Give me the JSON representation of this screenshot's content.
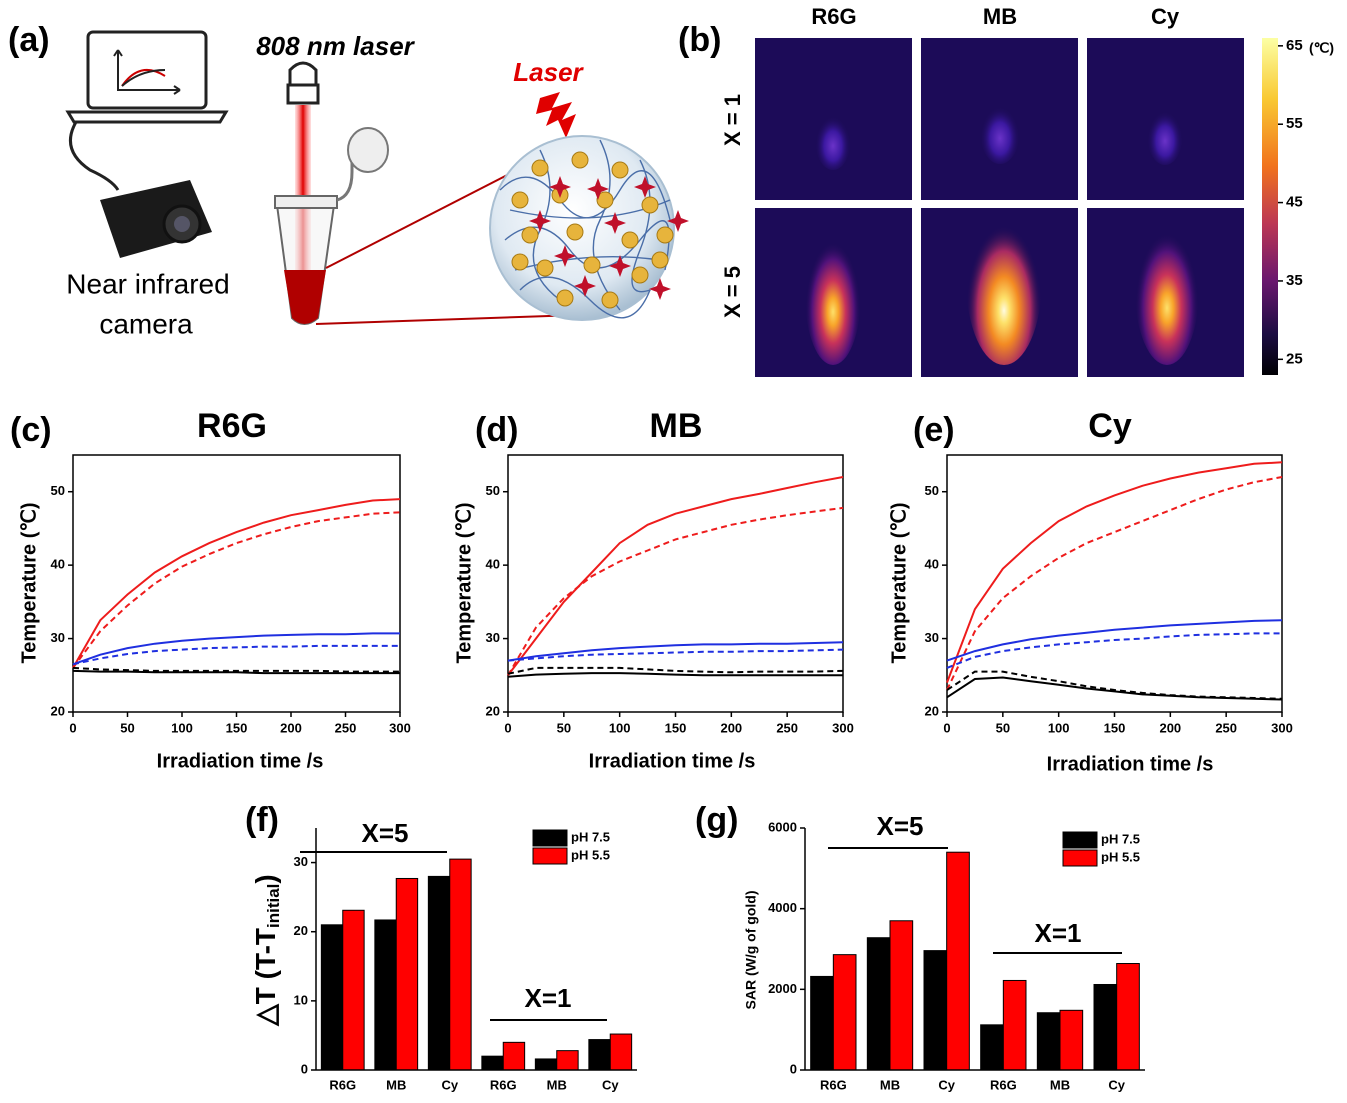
{
  "panel_a": {
    "label": "(a)",
    "laser_wavelength": "808 nm laser",
    "laser": "Laser",
    "camera_line1": "Near infrared",
    "camera_line2": "camera"
  },
  "panel_b": {
    "label": "(b)",
    "columns": [
      "R6G",
      "MB",
      "Cy"
    ],
    "rows": [
      "X = 1",
      "X = 5"
    ],
    "colorbar": {
      "lim": [
        23,
        66
      ],
      "ticks": [
        25,
        35,
        45,
        55,
        65
      ],
      "unit": "(℃)"
    }
  },
  "chart_data": [
    {
      "type": "line",
      "panel": "(c)",
      "title": "R6G",
      "x_label": "Irradiation time /s",
      "y_label": "Temperature (℃)",
      "x": [
        0,
        25,
        50,
        75,
        100,
        125,
        150,
        175,
        200,
        225,
        250,
        275,
        300
      ],
      "xlim": [
        0,
        300
      ],
      "xticks": [
        0,
        50,
        100,
        150,
        200,
        250,
        300
      ],
      "ylim": [
        20,
        55
      ],
      "yticks": [
        20,
        30,
        40,
        50
      ],
      "series": [
        {
          "color": "#ee1c1c",
          "dashed": false,
          "values": [
            26,
            32.5,
            36,
            39,
            41.2,
            43,
            44.5,
            45.8,
            46.8,
            47.5,
            48.2,
            48.8,
            49
          ]
        },
        {
          "color": "#ee1c1c",
          "dashed": true,
          "values": [
            26,
            31,
            34.5,
            37.5,
            39.8,
            41.5,
            43,
            44.2,
            45.2,
            46,
            46.5,
            47,
            47.2
          ]
        },
        {
          "color": "#1f2fe0",
          "dashed": false,
          "values": [
            26.5,
            27.8,
            28.7,
            29.3,
            29.7,
            30,
            30.2,
            30.4,
            30.5,
            30.6,
            30.6,
            30.7,
            30.7
          ]
        },
        {
          "color": "#1f2fe0",
          "dashed": true,
          "values": [
            26.5,
            27.3,
            27.9,
            28.3,
            28.5,
            28.7,
            28.8,
            28.9,
            28.9,
            29,
            29,
            29,
            29
          ]
        },
        {
          "color": "#000000",
          "dashed": false,
          "values": [
            25.6,
            25.5,
            25.5,
            25.4,
            25.4,
            25.4,
            25.4,
            25.3,
            25.3,
            25.3,
            25.3,
            25.3,
            25.3
          ]
        },
        {
          "color": "#000000",
          "dashed": true,
          "values": [
            26,
            25.8,
            25.7,
            25.6,
            25.6,
            25.6,
            25.6,
            25.6,
            25.6,
            25.6,
            25.5,
            25.5,
            25.5
          ]
        }
      ]
    },
    {
      "type": "line",
      "panel": "(d)",
      "title": "MB",
      "x_label": "Irradiation time /s",
      "y_label": "Temperature (℃)",
      "x": [
        0,
        25,
        50,
        75,
        100,
        125,
        150,
        175,
        200,
        225,
        250,
        275,
        300
      ],
      "xlim": [
        0,
        300
      ],
      "xticks": [
        0,
        50,
        100,
        150,
        200,
        250,
        300
      ],
      "ylim": [
        20,
        55
      ],
      "yticks": [
        20,
        30,
        40,
        50
      ],
      "series": [
        {
          "color": "#ee1c1c",
          "dashed": false,
          "values": [
            25,
            30,
            35,
            39,
            43,
            45.5,
            47,
            48,
            49,
            49.7,
            50.5,
            51.3,
            52
          ]
        },
        {
          "color": "#ee1c1c",
          "dashed": true,
          "values": [
            25,
            31.5,
            35.5,
            38.5,
            40.5,
            42,
            43.5,
            44.5,
            45.5,
            46.2,
            46.8,
            47.3,
            47.8
          ]
        },
        {
          "color": "#1f2fe0",
          "dashed": false,
          "values": [
            27,
            27.6,
            28,
            28.4,
            28.7,
            28.9,
            29.1,
            29.2,
            29.2,
            29.3,
            29.3,
            29.4,
            29.5
          ]
        },
        {
          "color": "#1f2fe0",
          "dashed": true,
          "values": [
            27,
            27.3,
            27.6,
            27.8,
            27.9,
            28,
            28.1,
            28.2,
            28.2,
            28.3,
            28.3,
            28.4,
            28.5
          ]
        },
        {
          "color": "#000000",
          "dashed": false,
          "values": [
            24.8,
            25.1,
            25.2,
            25.3,
            25.3,
            25.2,
            25.1,
            25,
            25,
            25,
            25,
            25,
            25
          ]
        },
        {
          "color": "#000000",
          "dashed": true,
          "values": [
            25.2,
            26,
            26,
            26,
            26,
            25.8,
            25.6,
            25.5,
            25.4,
            25.5,
            25.5,
            25.5,
            25.6
          ]
        }
      ]
    },
    {
      "type": "line",
      "panel": "(e)",
      "title": "Cy",
      "x_label": "Irradiation time /s",
      "y_label": "Temperature (℃)",
      "x": [
        0,
        25,
        50,
        75,
        100,
        125,
        150,
        175,
        200,
        225,
        250,
        275,
        300
      ],
      "xlim": [
        0,
        300
      ],
      "xticks": [
        0,
        50,
        100,
        150,
        200,
        250,
        300
      ],
      "ylim": [
        20,
        55
      ],
      "yticks": [
        20,
        30,
        40,
        50
      ],
      "series": [
        {
          "color": "#ee1c1c",
          "dashed": false,
          "values": [
            24,
            34,
            39.5,
            43,
            46,
            48,
            49.5,
            50.8,
            51.8,
            52.6,
            53.2,
            53.8,
            54
          ]
        },
        {
          "color": "#ee1c1c",
          "dashed": true,
          "values": [
            23,
            31,
            35.5,
            38.5,
            41,
            43,
            44.5,
            46,
            47.5,
            49,
            50.3,
            51.3,
            52
          ]
        },
        {
          "color": "#1f2fe0",
          "dashed": false,
          "values": [
            27,
            28.3,
            29.2,
            29.9,
            30.4,
            30.8,
            31.2,
            31.5,
            31.8,
            32,
            32.2,
            32.4,
            32.5
          ]
        },
        {
          "color": "#1f2fe0",
          "dashed": true,
          "values": [
            26,
            27.5,
            28.3,
            28.8,
            29.2,
            29.5,
            29.8,
            30,
            30.3,
            30.5,
            30.6,
            30.7,
            30.7
          ]
        },
        {
          "color": "#000000",
          "dashed": false,
          "values": [
            22,
            24.5,
            24.7,
            24.2,
            23.7,
            23.2,
            22.8,
            22.4,
            22.2,
            22,
            21.9,
            21.8,
            21.7
          ]
        },
        {
          "color": "#000000",
          "dashed": true,
          "values": [
            23,
            25.5,
            25.5,
            24.8,
            24.2,
            23.5,
            23,
            22.6,
            22.3,
            22.1,
            22,
            21.9,
            21.8
          ]
        }
      ]
    },
    {
      "type": "bar",
      "panel": "(f)",
      "y_label": {
        "text": "△T (T-T",
        "sub": "initial",
        "end": ")"
      },
      "categories": [
        "R6G",
        "MB",
        "Cy",
        "R6G",
        "MB",
        "Cy"
      ],
      "annotations": [
        "X=5",
        "X=1"
      ],
      "ylim": [
        0,
        35
      ],
      "yticks": [
        0,
        10,
        20,
        30
      ],
      "series": [
        {
          "name": "pH 7.5",
          "color": "#000000",
          "values": [
            21,
            21.7,
            28,
            2,
            1.6,
            4.4
          ]
        },
        {
          "name": "pH 5.5",
          "color": "#ff0000",
          "values": [
            23.1,
            27.7,
            30.5,
            4,
            2.8,
            5.2
          ]
        }
      ]
    },
    {
      "type": "bar",
      "panel": "(g)",
      "y_label": "SAR (W/g of gold)",
      "categories": [
        "R6G",
        "MB",
        "Cy",
        "R6G",
        "MB",
        "Cy"
      ],
      "annotations": [
        "X=5",
        "X=1"
      ],
      "ylim": [
        0,
        6000
      ],
      "yticks": [
        0,
        2000,
        4000,
        6000
      ],
      "series": [
        {
          "name": "pH 7.5",
          "color": "#000000",
          "values": [
            2320,
            3280,
            2960,
            1120,
            1420,
            2120
          ]
        },
        {
          "name": "pH 5.5",
          "color": "#ff0000",
          "values": [
            2860,
            3700,
            5400,
            2220,
            1480,
            2640
          ]
        }
      ]
    }
  ]
}
